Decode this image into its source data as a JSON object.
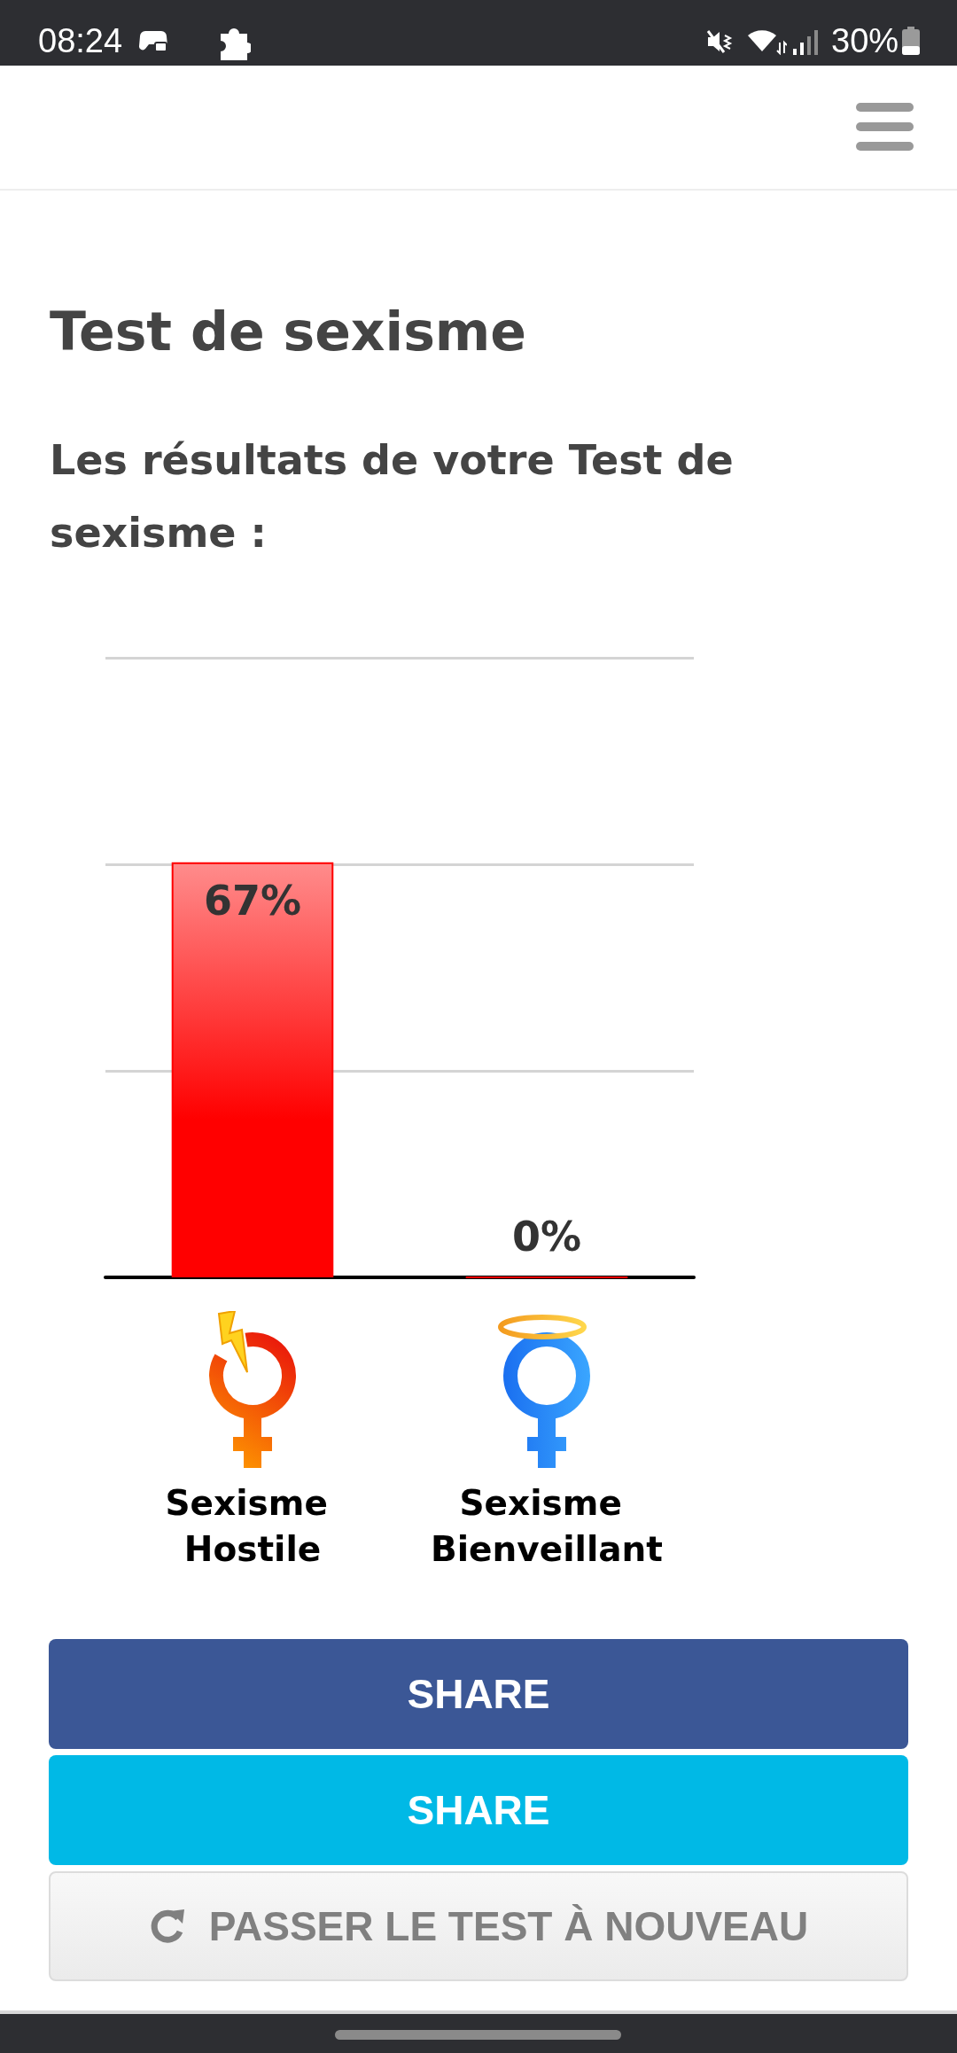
{
  "chart_data": {
    "type": "bar",
    "title": "Test de sexisme",
    "subtitle": "Les résultats de votre Test de sexisme :",
    "categories": [
      "Sexisme Hostile",
      "Sexisme Bienveillant"
    ],
    "values": [
      67,
      0
    ],
    "color": "#ff0000",
    "value_labels": [
      "67%",
      "0%"
    ],
    "ylim": [
      0,
      100
    ],
    "yticks": [
      {
        "value": 0,
        "label": null
      },
      {
        "value": 33.3,
        "label": null
      },
      {
        "value": 66.7,
        "label": null
      },
      {
        "value": 100,
        "label": null
      }
    ],
    "tick_labels": "x",
    "grid": "y",
    "annotations": [
      "08:24",
      "30%",
      "SHARE",
      "SHARE",
      "PASSER LE TEST À NOUVEAU"
    ]
  }
}
